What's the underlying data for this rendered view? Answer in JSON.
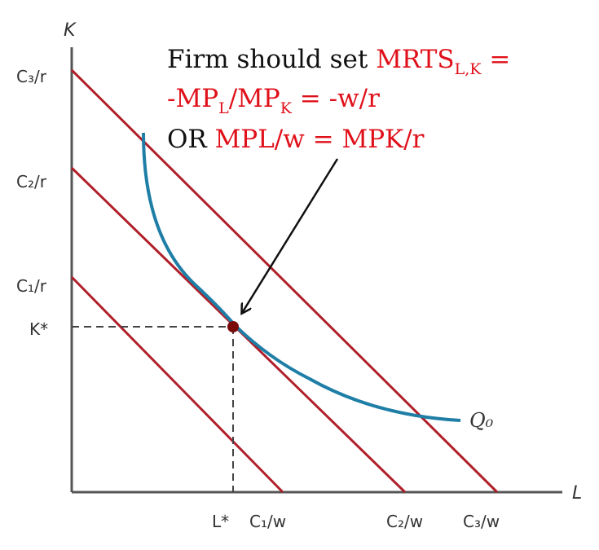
{
  "axes": {
    "y_label": "K",
    "x_label": "L"
  },
  "y_ticks": {
    "c3r": "C₃/r",
    "c2r": "C₂/r",
    "c1r": "C₁/r",
    "kstar": "K*"
  },
  "x_ticks": {
    "lstar": "L*",
    "c1w": "C₁/w",
    "c2w": "C₂/w",
    "c3w": "C₃/w"
  },
  "isoquant_label": "Q₀",
  "annotation": {
    "line1_black": "Firm should set ",
    "line1_red": "MRTS",
    "line1_sub": "L,K",
    "line1_end": " =",
    "line2_a": "-MP",
    "line2_sub1": "L",
    "line2_b": "/MP",
    "line2_sub2": "K",
    "line2_c": " = -w/r",
    "line3_black": "OR ",
    "line3_red": " MPL/w = MPK/r"
  },
  "colors": {
    "isocost": "#b0202a",
    "isoquant": "#1e7ea6",
    "axis": "#555555",
    "optimum_point": "#7a0a0a",
    "annotation_red": "#e0101a"
  }
}
